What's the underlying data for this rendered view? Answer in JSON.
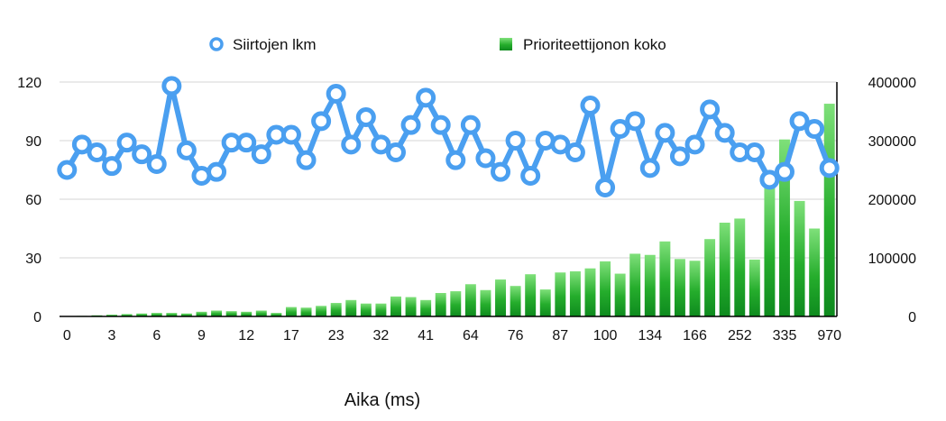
{
  "chart_data": {
    "type": "bar",
    "title": "",
    "xlabel": "Aika (ms)",
    "ylabel": "",
    "ylabel_right": "",
    "ylim_left": [
      0,
      120
    ],
    "ylim_right": [
      0,
      400000
    ],
    "yticks_left": [
      "0",
      "30",
      "60",
      "90",
      "120"
    ],
    "yticks_right": [
      "0",
      "100000",
      "200000",
      "300000",
      "400000"
    ],
    "x_tick_labels": [
      "0",
      "3",
      "6",
      "9",
      "12",
      "17",
      "23",
      "32",
      "41",
      "64",
      "76",
      "87",
      "100",
      "134",
      "166",
      "252",
      "335",
      "970"
    ],
    "grid": true,
    "legend_position": "top",
    "series": [
      {
        "name": "Siirtojen lkm",
        "kind": "line",
        "axis": "left",
        "color": "#4a9ff0",
        "values": [
          75,
          88,
          84,
          77,
          89,
          83,
          78,
          118,
          85,
          72,
          74,
          89,
          89,
          83,
          93,
          93,
          80,
          100,
          114,
          88,
          102,
          88,
          84,
          98,
          112,
          98,
          80,
          98,
          81,
          74,
          90,
          72,
          90,
          88,
          84,
          108,
          66,
          96,
          100,
          76,
          94,
          82,
          88,
          106,
          94,
          84,
          84,
          70,
          74,
          100,
          96,
          76
        ]
      },
      {
        "name": "Prioriteettijonon koko",
        "kind": "bar",
        "axis": "right",
        "color": "#2aaa2a",
        "values": [
          0,
          1000,
          2000,
          3000,
          4000,
          5000,
          6000,
          6000,
          5000,
          8000,
          10000,
          9000,
          8000,
          10000,
          6000,
          16000,
          15000,
          18000,
          23000,
          28000,
          22000,
          22000,
          34000,
          33000,
          28000,
          40000,
          43000,
          55000,
          45000,
          63000,
          52000,
          72000,
          46000,
          75000,
          77000,
          82000,
          94000,
          73000,
          107000,
          105000,
          128000,
          98000,
          95000,
          132000,
          160000,
          167000,
          97000,
          220000,
          302000,
          197000,
          150000,
          363000
        ]
      }
    ]
  }
}
